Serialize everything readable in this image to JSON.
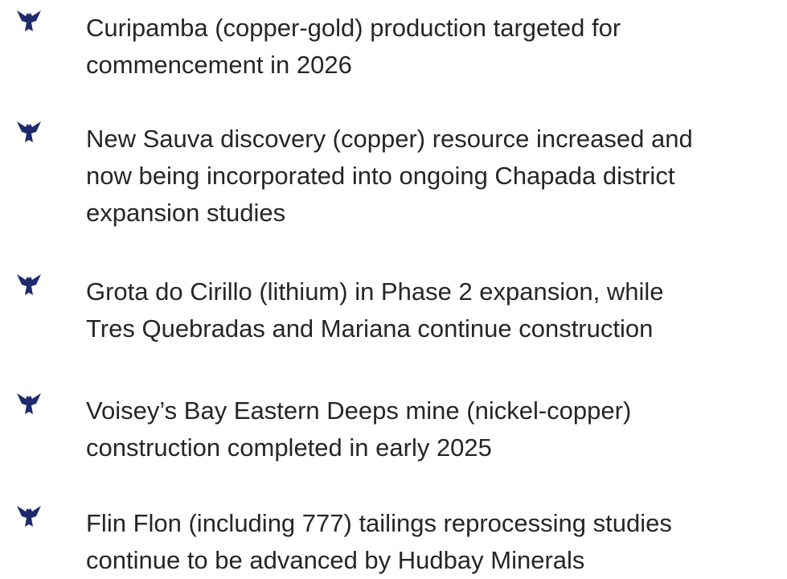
{
  "items": [
    {
      "lines": [
        "Curipamba (copper-gold) production targeted for",
        "commencement in 2026"
      ]
    },
    {
      "lines": [
        "New Sauva discovery (copper) resource increased and",
        "now being incorporated into ongoing Chapada district",
        "expansion studies"
      ]
    },
    {
      "lines": [
        "Grota do Cirillo (lithium) in Phase 2 expansion, while",
        "Tres Quebradas and Mariana continue construction"
      ]
    },
    {
      "lines": [
        "Voisey’s Bay Eastern Deeps mine (nickel-copper)",
        "construction completed in early 2025"
      ]
    },
    {
      "lines": [
        "Flin Flon (including 777) tailings reprocessing studies",
        "continue to be advanced by Hudbay Minerals"
      ]
    }
  ]
}
